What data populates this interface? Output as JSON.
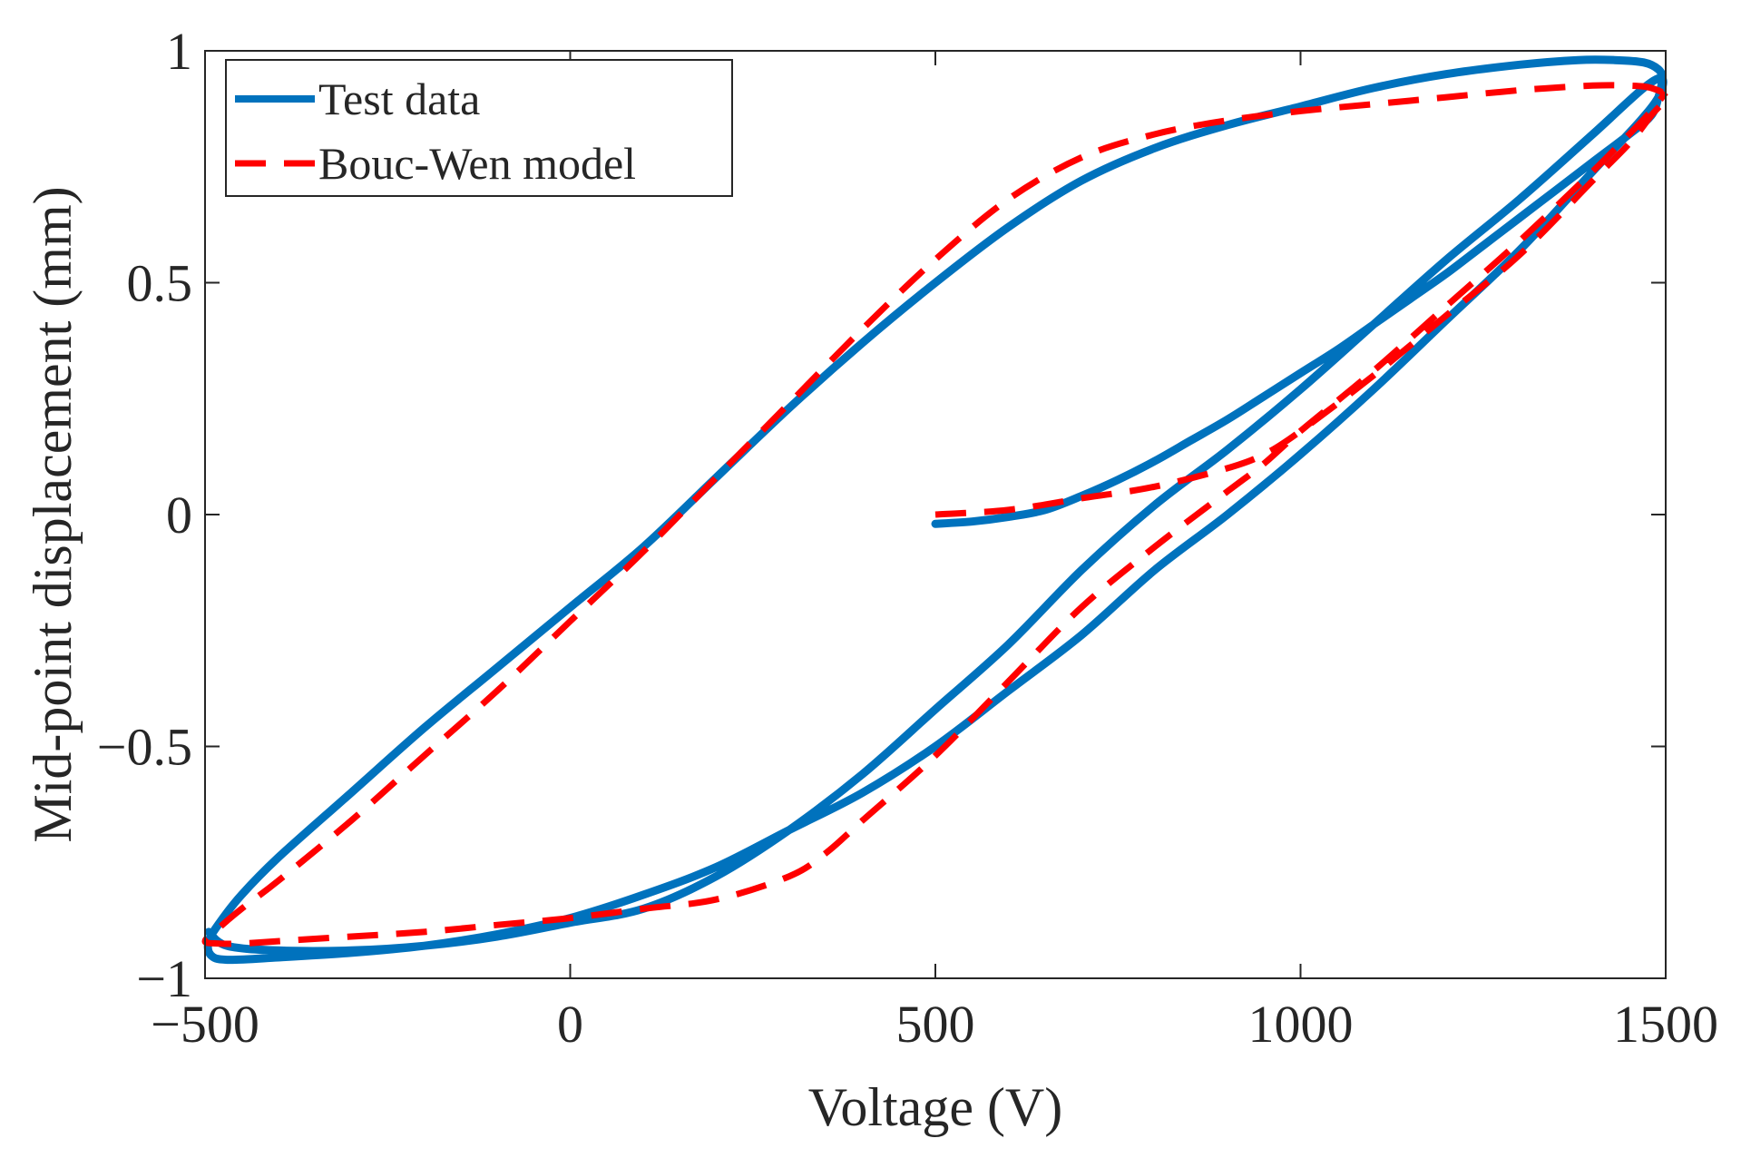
{
  "chart_data": {
    "type": "line",
    "title": "",
    "xlabel": "Voltage  (V)",
    "ylabel": "Mid-point displacement  (mm)",
    "xlim": [
      -500,
      1500
    ],
    "ylim": [
      -1,
      1
    ],
    "xticks": [
      -500,
      0,
      500,
      1000,
      1500
    ],
    "yticks": [
      -1,
      -0.5,
      0,
      0.5,
      1
    ],
    "xtick_labels": [
      "−500",
      "0",
      "500",
      "1000",
      "1500"
    ],
    "ytick_labels": [
      "−1",
      "−0.5",
      "0",
      "0.5",
      "1"
    ],
    "grid": false,
    "legend": {
      "position": "top-left"
    },
    "series": [
      {
        "name": "Test data",
        "color": "#0072BD",
        "style": "solid",
        "x": [
          500,
          550,
          600,
          650,
          700,
          750,
          800,
          850,
          900,
          950,
          1000,
          1050,
          1100,
          1150,
          1200,
          1250,
          1300,
          1350,
          1400,
          1450,
          1480,
          1490,
          1495,
          1490,
          1470,
          1430,
          1380,
          1300,
          1200,
          1100,
          1000,
          900,
          800,
          700,
          600,
          500,
          400,
          300,
          200,
          100,
          0,
          -100,
          -200,
          -300,
          -400,
          -450,
          -480,
          -495,
          -492,
          -470,
          -400,
          -300,
          -200,
          -100,
          0,
          100,
          200,
          300,
          400,
          500,
          600,
          700,
          800,
          900,
          1000,
          1100,
          1200,
          1300,
          1400,
          1460,
          1490,
          1495,
          1470,
          1400,
          1300,
          1200,
          1100,
          1000,
          900,
          800,
          700,
          600,
          500,
          400,
          300,
          200,
          100,
          0,
          -100,
          -200,
          -300,
          -400,
          -470,
          -495
        ],
        "y": [
          -0.02,
          -0.015,
          -0.005,
          0.01,
          0.04,
          0.075,
          0.115,
          0.16,
          0.205,
          0.255,
          0.305,
          0.355,
          0.41,
          0.465,
          0.52,
          0.58,
          0.64,
          0.7,
          0.76,
          0.82,
          0.86,
          0.9,
          0.94,
          0.96,
          0.975,
          0.98,
          0.98,
          0.97,
          0.95,
          0.92,
          0.88,
          0.84,
          0.79,
          0.72,
          0.62,
          0.5,
          0.37,
          0.23,
          0.08,
          -0.07,
          -0.2,
          -0.33,
          -0.46,
          -0.6,
          -0.74,
          -0.82,
          -0.88,
          -0.92,
          -0.95,
          -0.96,
          -0.955,
          -0.945,
          -0.93,
          -0.905,
          -0.87,
          -0.82,
          -0.76,
          -0.68,
          -0.6,
          -0.5,
          -0.38,
          -0.26,
          -0.12,
          0.0,
          0.13,
          0.27,
          0.42,
          0.57,
          0.74,
          0.84,
          0.9,
          0.94,
          0.92,
          0.82,
          0.68,
          0.55,
          0.41,
          0.27,
          0.14,
          0.02,
          -0.12,
          -0.28,
          -0.42,
          -0.56,
          -0.68,
          -0.78,
          -0.85,
          -0.88,
          -0.91,
          -0.93,
          -0.94,
          -0.94,
          -0.93,
          -0.9
        ]
      },
      {
        "name": "Bouc-Wen model",
        "color": "#FF0000",
        "style": "dashed",
        "x": [
          500,
          600,
          700,
          800,
          900,
          950,
          1000,
          1100,
          1200,
          1300,
          1400,
          1450,
          1480,
          1500,
          1480,
          1450,
          1400,
          1300,
          1200,
          1100,
          1000,
          900,
          800,
          700,
          600,
          500,
          400,
          300,
          200,
          100,
          0,
          -100,
          -200,
          -300,
          -400,
          -450,
          -480,
          -500,
          -480,
          -450,
          -400,
          -300,
          -200,
          -100,
          0,
          100,
          200,
          300,
          350,
          400,
          500,
          600,
          700,
          800,
          900,
          950,
          1000,
          1100,
          1200,
          1300,
          1400,
          1450,
          1480,
          1500
        ],
        "y": [
          0.0,
          0.01,
          0.035,
          0.06,
          0.1,
          0.13,
          0.18,
          0.3,
          0.43,
          0.56,
          0.72,
          0.8,
          0.86,
          0.9,
          0.92,
          0.925,
          0.925,
          0.915,
          0.9,
          0.885,
          0.87,
          0.85,
          0.82,
          0.77,
          0.68,
          0.55,
          0.4,
          0.24,
          0.08,
          -0.08,
          -0.23,
          -0.38,
          -0.52,
          -0.66,
          -0.79,
          -0.85,
          -0.89,
          -0.92,
          -0.925,
          -0.925,
          -0.92,
          -0.91,
          -0.9,
          -0.885,
          -0.87,
          -0.85,
          -0.83,
          -0.78,
          -0.73,
          -0.66,
          -0.52,
          -0.36,
          -0.2,
          -0.07,
          0.05,
          0.11,
          0.18,
          0.31,
          0.45,
          0.59,
          0.74,
          0.82,
          0.87,
          0.91
        ]
      }
    ]
  }
}
